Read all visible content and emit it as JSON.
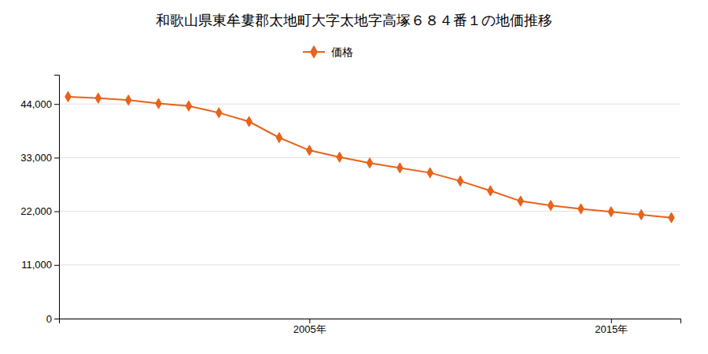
{
  "chart_data": {
    "type": "line",
    "title": "和歌山県東牟婁郡太地町大字太地字高塚６８４番１の地価推移",
    "x": [
      1997,
      1998,
      1999,
      2000,
      2001,
      2002,
      2003,
      2004,
      2005,
      2006,
      2007,
      2008,
      2009,
      2010,
      2011,
      2012,
      2013,
      2014,
      2015,
      2016,
      2017
    ],
    "series": [
      {
        "name": "価格",
        "color": "#E8621A",
        "marker": "diamond",
        "line_style": "solid",
        "values": [
          45500,
          45200,
          44800,
          44100,
          43600,
          42200,
          40400,
          37100,
          34500,
          33100,
          31900,
          30900,
          29900,
          28200,
          26200,
          24100,
          23200,
          22500,
          21900,
          21300,
          20700
        ]
      }
    ],
    "xlim": [
      1996.7,
      2017.3
    ],
    "xticks": [
      {
        "value": 2005,
        "label": "2005年"
      },
      {
        "value": 2015,
        "label": "2015年"
      }
    ],
    "ylim": [
      0,
      50000
    ],
    "yticks": [
      0,
      {
        "value": 11000,
        "label": "11,000"
      },
      {
        "value": 22000,
        "label": "22,000"
      },
      {
        "value": 33000,
        "label": "33,000"
      },
      {
        "value": 44000,
        "label": "44,000"
      }
    ],
    "grid": "y",
    "legend": "top"
  }
}
